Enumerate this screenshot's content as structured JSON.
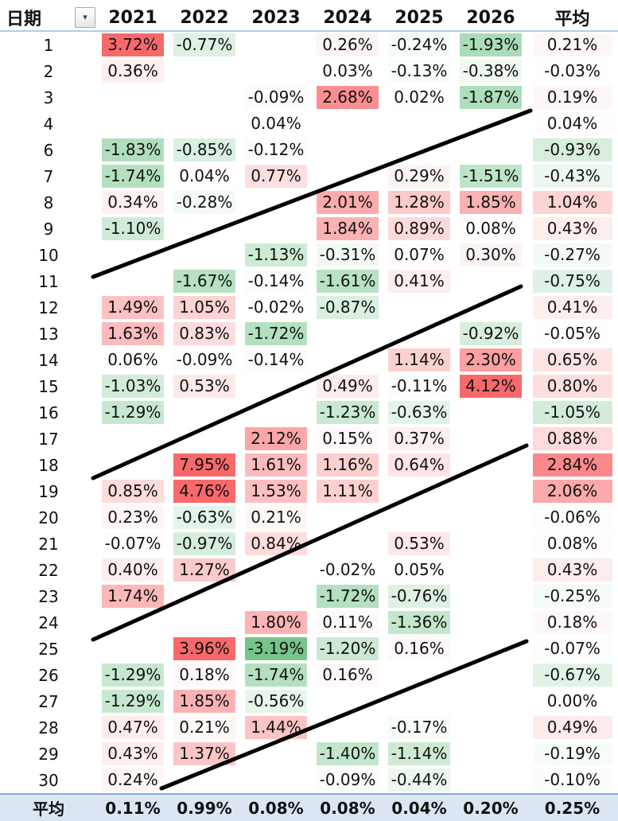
{
  "header": {
    "date_label": "日期",
    "filter_icon": "▾",
    "years": [
      "2021",
      "2022",
      "2023",
      "2024",
      "2025",
      "2026"
    ],
    "avg_label": "平均"
  },
  "rows": [
    {
      "day": "1",
      "cells": [
        "3.72%",
        "-0.77%",
        "",
        "0.26%",
        "-0.24%",
        "-1.93%"
      ],
      "avg": "0.21%"
    },
    {
      "day": "2",
      "cells": [
        "0.36%",
        "",
        "",
        "0.03%",
        "-0.13%",
        "-0.38%"
      ],
      "avg": "-0.03%"
    },
    {
      "day": "3",
      "cells": [
        "",
        "",
        "-0.09%",
        "2.68%",
        "0.02%",
        "-1.87%"
      ],
      "avg": "0.19%"
    },
    {
      "day": "4",
      "cells": [
        "",
        "",
        "0.04%",
        "",
        "",
        ""
      ],
      "avg": "0.04%"
    },
    {
      "day": "6",
      "cells": [
        "-1.83%",
        "-0.85%",
        "-0.12%",
        "",
        "",
        ""
      ],
      "avg": "-0.93%"
    },
    {
      "day": "7",
      "cells": [
        "-1.74%",
        "0.04%",
        "0.77%",
        "",
        "0.29%",
        "-1.51%"
      ],
      "avg": "-0.43%"
    },
    {
      "day": "8",
      "cells": [
        "0.34%",
        "-0.28%",
        "",
        "2.01%",
        "1.28%",
        "1.85%"
      ],
      "avg": "1.04%"
    },
    {
      "day": "9",
      "cells": [
        "-1.10%",
        "",
        "",
        "1.84%",
        "0.89%",
        "0.08%"
      ],
      "avg": "0.43%"
    },
    {
      "day": "10",
      "cells": [
        "",
        "",
        "-1.13%",
        "-0.31%",
        "0.07%",
        "0.30%"
      ],
      "avg": "-0.27%"
    },
    {
      "day": "11",
      "cells": [
        "",
        "-1.67%",
        "-0.14%",
        "-1.61%",
        "0.41%",
        ""
      ],
      "avg": "-0.75%"
    },
    {
      "day": "12",
      "cells": [
        "1.49%",
        "1.05%",
        "-0.02%",
        "-0.87%",
        "",
        ""
      ],
      "avg": "0.41%"
    },
    {
      "day": "13",
      "cells": [
        "1.63%",
        "0.83%",
        "-1.72%",
        "",
        "",
        "-0.92%"
      ],
      "avg": "-0.05%"
    },
    {
      "day": "14",
      "cells": [
        "0.06%",
        "-0.09%",
        "-0.14%",
        "",
        "1.14%",
        "2.30%"
      ],
      "avg": "0.65%"
    },
    {
      "day": "15",
      "cells": [
        "-1.03%",
        "0.53%",
        "",
        "0.49%",
        "-0.11%",
        "4.12%"
      ],
      "avg": "0.80%"
    },
    {
      "day": "16",
      "cells": [
        "-1.29%",
        "",
        "",
        "-1.23%",
        "-0.63%",
        ""
      ],
      "avg": "-1.05%"
    },
    {
      "day": "17",
      "cells": [
        "",
        "",
        "2.12%",
        "0.15%",
        "0.37%",
        ""
      ],
      "avg": "0.88%"
    },
    {
      "day": "18",
      "cells": [
        "",
        "7.95%",
        "1.61%",
        "1.16%",
        "0.64%",
        ""
      ],
      "avg": "2.84%"
    },
    {
      "day": "19",
      "cells": [
        "0.85%",
        "4.76%",
        "1.53%",
        "1.11%",
        "",
        ""
      ],
      "avg": "2.06%"
    },
    {
      "day": "20",
      "cells": [
        "0.23%",
        "-0.63%",
        "0.21%",
        "",
        "",
        ""
      ],
      "avg": "-0.06%"
    },
    {
      "day": "21",
      "cells": [
        "-0.07%",
        "-0.97%",
        "0.84%",
        "",
        "0.53%",
        ""
      ],
      "avg": "0.08%"
    },
    {
      "day": "22",
      "cells": [
        "0.40%",
        "1.27%",
        "",
        "-0.02%",
        "0.05%",
        ""
      ],
      "avg": "0.43%"
    },
    {
      "day": "23",
      "cells": [
        "1.74%",
        "",
        "",
        "-1.72%",
        "-0.76%",
        ""
      ],
      "avg": "-0.25%"
    },
    {
      "day": "24",
      "cells": [
        "",
        "",
        "1.80%",
        "0.11%",
        "-1.36%",
        ""
      ],
      "avg": "0.18%"
    },
    {
      "day": "25",
      "cells": [
        "",
        "3.96%",
        "-3.19%",
        "-1.20%",
        "0.16%",
        ""
      ],
      "avg": "-0.07%"
    },
    {
      "day": "26",
      "cells": [
        "-1.29%",
        "0.18%",
        "-1.74%",
        "0.16%",
        "",
        ""
      ],
      "avg": "-0.67%"
    },
    {
      "day": "27",
      "cells": [
        "-1.29%",
        "1.85%",
        "-0.56%",
        "",
        "",
        ""
      ],
      "avg": "0.00%"
    },
    {
      "day": "28",
      "cells": [
        "0.47%",
        "0.21%",
        "1.44%",
        "",
        "-0.17%",
        ""
      ],
      "avg": "0.49%"
    },
    {
      "day": "29",
      "cells": [
        "0.43%",
        "1.37%",
        "",
        "-1.40%",
        "-1.14%",
        ""
      ],
      "avg": "-0.19%"
    },
    {
      "day": "30",
      "cells": [
        "0.24%",
        "",
        "",
        "-0.09%",
        "-0.44%",
        ""
      ],
      "avg": "-0.10%"
    }
  ],
  "footer": {
    "label": "平均",
    "cells": [
      "0.11%",
      "0.99%",
      "0.08%",
      "0.08%",
      "0.04%",
      "0.20%"
    ],
    "avg": "0.25%"
  },
  "colors": {
    "positive": "#f8696b",
    "negative": "#63be7b",
    "footer_bg": "#dce6f3",
    "trend_line": "#000000"
  }
}
